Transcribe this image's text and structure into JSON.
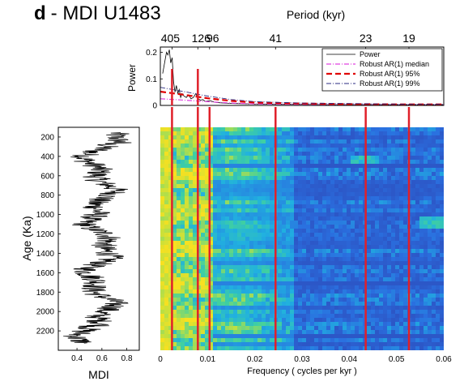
{
  "panel": {
    "letter": "d",
    "title": "- MDI U1483"
  },
  "chart_data": [
    {
      "type": "line",
      "name": "power-spectrum",
      "title": "",
      "xlabel": "Period (kyr)",
      "ylabel": "Power",
      "xlim": [
        0,
        0.06
      ],
      "ylim": [
        0,
        0.22
      ],
      "period_ticks": [
        {
          "label": "405",
          "freq": 0.00247
        },
        {
          "label": "126",
          "freq": 0.00794
        },
        {
          "label": "96",
          "freq": 0.01042
        },
        {
          "label": "41",
          "freq": 0.02439
        },
        {
          "label": "23",
          "freq": 0.04348
        },
        {
          "label": "19",
          "freq": 0.05263
        }
      ],
      "yticks": [
        0,
        0.1,
        0.2
      ],
      "ytick_labels": [
        "0",
        "0.1",
        "0.2"
      ],
      "legend": {
        "placement": "top-right",
        "entries": [
          "Power",
          "Robust AR(1) median",
          "Robust AR(1) 95%",
          "Robust AR(1) 99%"
        ]
      },
      "series": [
        {
          "name": "Power",
          "color": "#000000",
          "x": [
            0.0005,
            0.001,
            0.0013,
            0.0016,
            0.0019,
            0.0022,
            0.0025,
            0.0028,
            0.0031,
            0.0034,
            0.0037,
            0.004,
            0.0043,
            0.0046,
            0.005,
            0.0055,
            0.006,
            0.0065,
            0.007,
            0.0075,
            0.008,
            0.0085,
            0.009,
            0.0095,
            0.0105,
            0.0115,
            0.0125,
            0.014,
            0.016,
            0.018,
            0.02,
            0.025,
            0.03,
            0.035,
            0.04,
            0.045,
            0.05,
            0.055,
            0.06
          ],
          "values": [
            0.12,
            0.17,
            0.2,
            0.19,
            0.21,
            0.16,
            0.18,
            0.09,
            0.05,
            0.075,
            0.045,
            0.06,
            0.03,
            0.045,
            0.035,
            0.03,
            0.04,
            0.025,
            0.03,
            0.045,
            0.025,
            0.02,
            0.022,
            0.015,
            0.018,
            0.012,
            0.01,
            0.008,
            0.007,
            0.006,
            0.005,
            0.004,
            0.004,
            0.003,
            0.003,
            0.003,
            0.002,
            0.002,
            0.002
          ]
        },
        {
          "name": "Robust AR(1) median",
          "color": "#e040e0",
          "x": [
            0,
            0.005,
            0.01,
            0.015,
            0.02,
            0.03,
            0.04,
            0.05,
            0.06
          ],
          "values": [
            0.025,
            0.02,
            0.014,
            0.009,
            0.006,
            0.004,
            0.003,
            0.002,
            0.002
          ]
        },
        {
          "name": "Robust AR(1) 95%",
          "color": "#e00000",
          "x": [
            0,
            0.005,
            0.01,
            0.015,
            0.02,
            0.03,
            0.04,
            0.05,
            0.06
          ],
          "values": [
            0.052,
            0.04,
            0.027,
            0.017,
            0.011,
            0.007,
            0.005,
            0.004,
            0.004
          ]
        },
        {
          "name": "Robust AR(1) 99%",
          "color": "#2a2a80",
          "x": [
            0,
            0.005,
            0.01,
            0.015,
            0.02,
            0.03,
            0.04,
            0.05,
            0.06
          ],
          "values": [
            0.068,
            0.052,
            0.035,
            0.022,
            0.014,
            0.009,
            0.007,
            0.005,
            0.005
          ]
        }
      ],
      "marker_color": "#e0202a"
    },
    {
      "type": "line",
      "name": "mdi-record",
      "xlabel": "MDI",
      "ylabel": "Age (Ka)",
      "xlim": [
        0.25,
        0.9
      ],
      "ylim": [
        100,
        2400
      ],
      "yticks": [
        200,
        400,
        600,
        800,
        1000,
        1200,
        1400,
        1600,
        1800,
        2000,
        2200
      ],
      "xticks": [
        0.4,
        0.6,
        0.8
      ],
      "xtick_labels": [
        "0.4",
        "0.6",
        "0.8"
      ]
    },
    {
      "type": "heatmap",
      "name": "evolutive-spectrum",
      "xlabel": "Frequency ( cycles per kyr )",
      "xlim": [
        0,
        0.06
      ],
      "ylim": [
        100,
        2400
      ],
      "xticks": [
        0,
        0.01,
        0.02,
        0.03,
        0.04,
        0.05,
        0.06
      ],
      "xtick_labels": [
        "0",
        "0.01",
        "0.02",
        "0.03",
        "0.04",
        "0.05",
        "0.06"
      ],
      "marker_freqs": [
        0.00247,
        0.00794,
        0.01042,
        0.02439,
        0.04348,
        0.05263
      ],
      "colormap": [
        "#3030a0",
        "#2a70e0",
        "#20b0e0",
        "#40d0a0",
        "#c0e040",
        "#f8e020"
      ]
    }
  ]
}
